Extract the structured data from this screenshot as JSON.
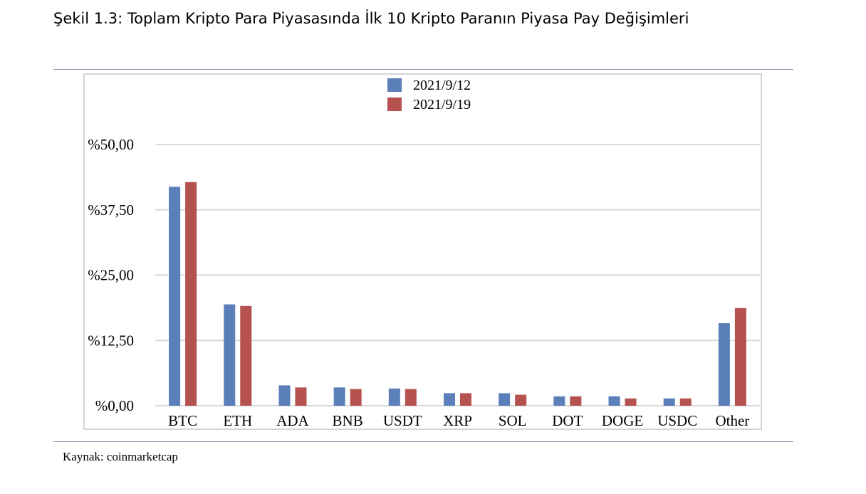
{
  "figure": {
    "title": "Şekil 1.3: Toplam Kripto Para Piyasasında İlk 10 Kripto Paranın Piyasa Pay Değişimleri",
    "source": "Kaynak: coinmarketcap"
  },
  "chart_data": {
    "type": "bar",
    "title": "",
    "xlabel": "",
    "ylabel": "",
    "categories": [
      "BTC",
      "ETH",
      "ADA",
      "BNB",
      "USDT",
      "XRP",
      "SOL",
      "DOT",
      "DOGE",
      "USDC",
      "Other"
    ],
    "series": [
      {
        "name": "2021/9/12",
        "color": "#5b7fb9",
        "values": [
          41.9,
          19.4,
          3.9,
          3.5,
          3.3,
          2.4,
          2.4,
          1.8,
          1.8,
          1.4,
          15.8
        ]
      },
      {
        "name": "2021/9/19",
        "color": "#b5524f",
        "values": [
          42.8,
          19.1,
          3.5,
          3.2,
          3.2,
          2.4,
          2.1,
          1.8,
          1.4,
          1.4,
          18.7
        ]
      }
    ],
    "ylim": [
      0,
      50
    ],
    "yticks": [
      0,
      12.5,
      25,
      37.5,
      50
    ],
    "ytick_labels": [
      "%0,00",
      "%12,50",
      "%25,00",
      "%37,50",
      "%50,00"
    ],
    "grid": true,
    "legend_position": "top-center"
  }
}
